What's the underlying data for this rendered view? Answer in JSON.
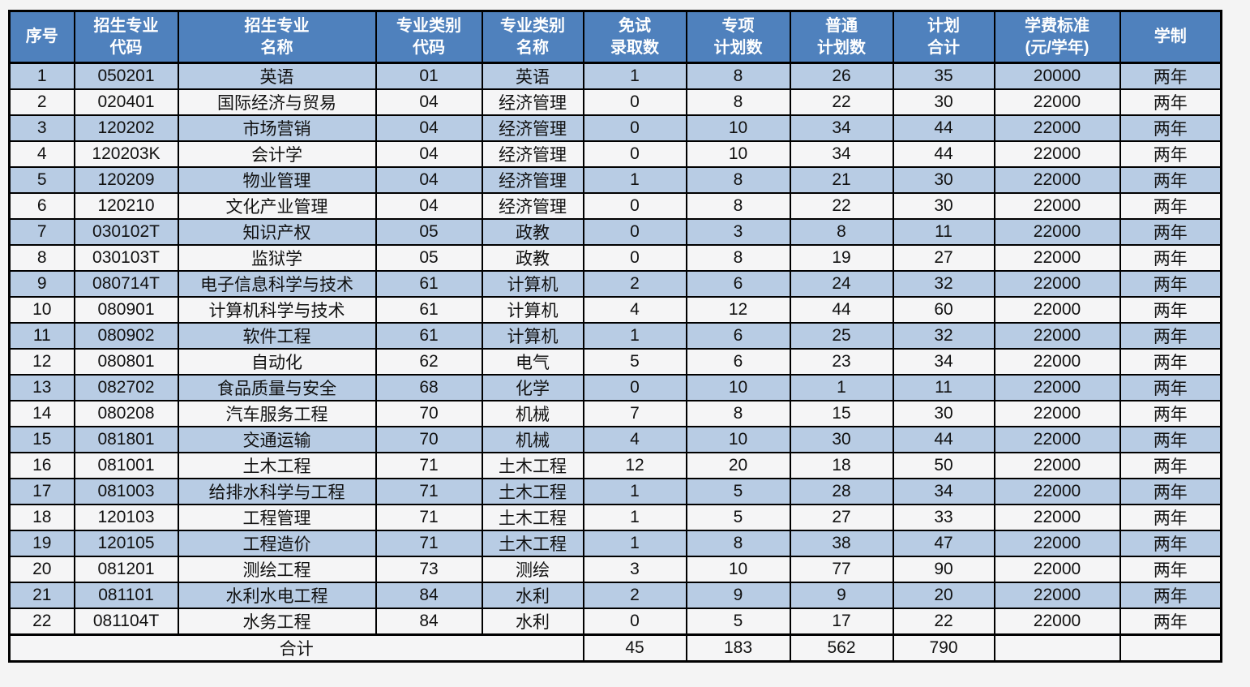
{
  "colors": {
    "page_background": "#f4f4f4",
    "header_background": "#4f81bd",
    "header_text": "#ffffff",
    "row_alt_background": "#b8cce4",
    "row_background": "#f5f5f6",
    "border": "#000000"
  },
  "table": {
    "columns": [
      {
        "key": "seq",
        "label": "序号"
      },
      {
        "key": "major-code",
        "label": "招生专业\n代码"
      },
      {
        "key": "major-name",
        "label": "招生专业\n名称"
      },
      {
        "key": "category-code",
        "label": "专业类别\n代码"
      },
      {
        "key": "category-name",
        "label": "专业类别\n名称"
      },
      {
        "key": "exempt-count",
        "label": "免试\n录取数"
      },
      {
        "key": "special-count",
        "label": "专项\n计划数"
      },
      {
        "key": "regular-count",
        "label": "普通\n计划数"
      },
      {
        "key": "plan-total",
        "label": "计划\n合计"
      },
      {
        "key": "tuition",
        "label": "学费标准\n(元/学年)"
      },
      {
        "key": "duration",
        "label": "学制"
      }
    ],
    "rows": [
      [
        "1",
        "050201",
        "英语",
        "01",
        "英语",
        "1",
        "8",
        "26",
        "35",
        "20000",
        "两年"
      ],
      [
        "2",
        "020401",
        "国际经济与贸易",
        "04",
        "经济管理",
        "0",
        "8",
        "22",
        "30",
        "22000",
        "两年"
      ],
      [
        "3",
        "120202",
        "市场营销",
        "04",
        "经济管理",
        "0",
        "10",
        "34",
        "44",
        "22000",
        "两年"
      ],
      [
        "4",
        "120203K",
        "会计学",
        "04",
        "经济管理",
        "0",
        "10",
        "34",
        "44",
        "22000",
        "两年"
      ],
      [
        "5",
        "120209",
        "物业管理",
        "04",
        "经济管理",
        "1",
        "8",
        "21",
        "30",
        "22000",
        "两年"
      ],
      [
        "6",
        "120210",
        "文化产业管理",
        "04",
        "经济管理",
        "0",
        "8",
        "22",
        "30",
        "22000",
        "两年"
      ],
      [
        "7",
        "030102T",
        "知识产权",
        "05",
        "政教",
        "0",
        "3",
        "8",
        "11",
        "22000",
        "两年"
      ],
      [
        "8",
        "030103T",
        "监狱学",
        "05",
        "政教",
        "0",
        "8",
        "19",
        "27",
        "22000",
        "两年"
      ],
      [
        "9",
        "080714T",
        "电子信息科学与技术",
        "61",
        "计算机",
        "2",
        "6",
        "24",
        "32",
        "22000",
        "两年"
      ],
      [
        "10",
        "080901",
        "计算机科学与技术",
        "61",
        "计算机",
        "4",
        "12",
        "44",
        "60",
        "22000",
        "两年"
      ],
      [
        "11",
        "080902",
        "软件工程",
        "61",
        "计算机",
        "1",
        "6",
        "25",
        "32",
        "22000",
        "两年"
      ],
      [
        "12",
        "080801",
        "自动化",
        "62",
        "电气",
        "5",
        "6",
        "23",
        "34",
        "22000",
        "两年"
      ],
      [
        "13",
        "082702",
        "食品质量与安全",
        "68",
        "化学",
        "0",
        "10",
        "1",
        "11",
        "22000",
        "两年"
      ],
      [
        "14",
        "080208",
        "汽车服务工程",
        "70",
        "机械",
        "7",
        "8",
        "15",
        "30",
        "22000",
        "两年"
      ],
      [
        "15",
        "081801",
        "交通运输",
        "70",
        "机械",
        "4",
        "10",
        "30",
        "44",
        "22000",
        "两年"
      ],
      [
        "16",
        "081001",
        "土木工程",
        "71",
        "土木工程",
        "12",
        "20",
        "18",
        "50",
        "22000",
        "两年"
      ],
      [
        "17",
        "081003",
        "给排水科学与工程",
        "71",
        "土木工程",
        "1",
        "5",
        "28",
        "34",
        "22000",
        "两年"
      ],
      [
        "18",
        "120103",
        "工程管理",
        "71",
        "土木工程",
        "1",
        "5",
        "27",
        "33",
        "22000",
        "两年"
      ],
      [
        "19",
        "120105",
        "工程造价",
        "71",
        "土木工程",
        "1",
        "8",
        "38",
        "47",
        "22000",
        "两年"
      ],
      [
        "20",
        "081201",
        "测绘工程",
        "73",
        "测绘",
        "3",
        "10",
        "77",
        "90",
        "22000",
        "两年"
      ],
      [
        "21",
        "081101",
        "水利水电工程",
        "84",
        "水利",
        "2",
        "9",
        "9",
        "20",
        "22000",
        "两年"
      ],
      [
        "22",
        "081104T",
        "水务工程",
        "84",
        "水利",
        "0",
        "5",
        "17",
        "22",
        "22000",
        "两年"
      ]
    ],
    "total_row": {
      "label": "合计",
      "label_colspan": 5,
      "values": [
        "45",
        "183",
        "562",
        "790",
        "",
        ""
      ]
    }
  }
}
